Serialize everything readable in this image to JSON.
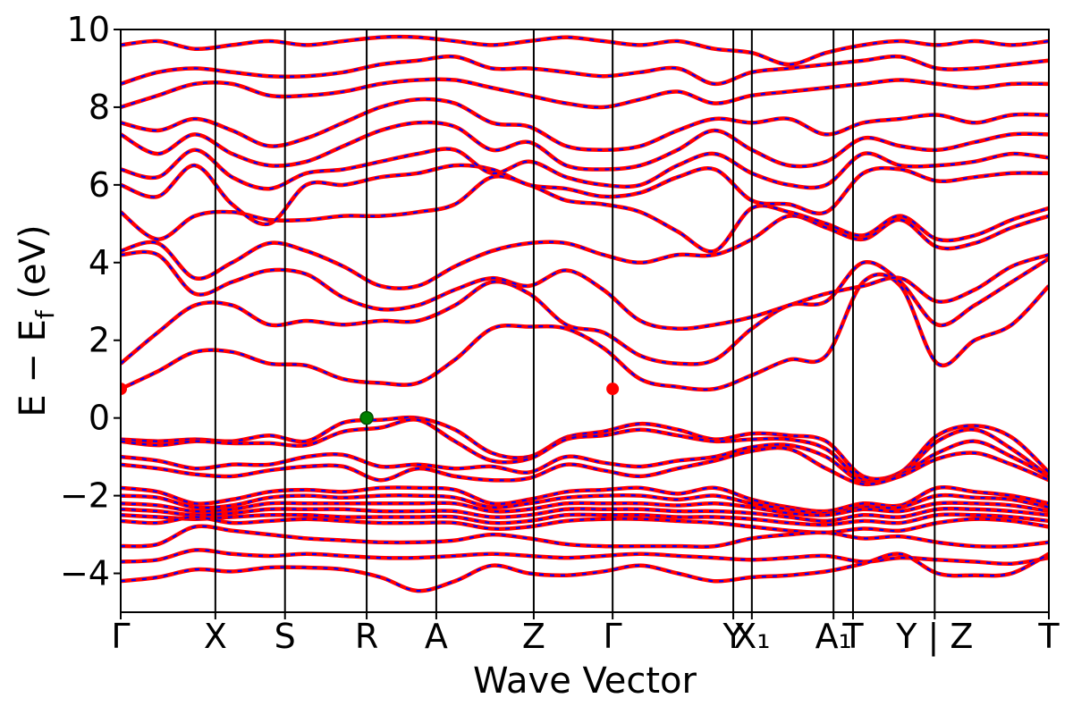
{
  "chart_data": {
    "type": "line",
    "title": "",
    "xlabel": "Wave Vector",
    "ylabel_main": "E − E",
    "ylabel_sub": "f",
    "ylabel_unit": " (eV)",
    "ylim": [
      -5,
      10
    ],
    "yticks": [
      -4,
      -2,
      0,
      2,
      4,
      6,
      8,
      10
    ],
    "ytick_labels": [
      "−4",
      "−2",
      "0",
      "2",
      "4",
      "6",
      "8",
      "10"
    ],
    "x_range": [
      0,
      1
    ],
    "kpoints": [
      {
        "label": "Γ",
        "x": 0.0
      },
      {
        "label": "X",
        "x": 0.102
      },
      {
        "label": "S",
        "x": 0.177
      },
      {
        "label": "R",
        "x": 0.265
      },
      {
        "label": "A",
        "x": 0.34
      },
      {
        "label": "Z",
        "x": 0.445
      },
      {
        "label": "Γ",
        "x": 0.53
      },
      {
        "label": "Y",
        "x": 0.66
      },
      {
        "label": "X₁",
        "x": 0.68
      },
      {
        "label": "A₁",
        "x": 0.768
      },
      {
        "label": "T",
        "x": 0.789
      },
      {
        "label": "Y | Z",
        "x": 0.877
      },
      {
        "label": "T",
        "x": 1.0
      }
    ],
    "series": [
      {
        "name": "",
        "color": "#ff0000",
        "style": "solid"
      },
      {
        "name": "",
        "color": "#0000ff",
        "style": "dashed"
      }
    ],
    "cbm_points": [
      {
        "x": 0.0,
        "y": 0.75,
        "color": "#ff0000"
      },
      {
        "x": 0.53,
        "y": 0.75,
        "color": "#ff0000"
      }
    ],
    "vbm_point": {
      "x": 0.265,
      "y": 0.0,
      "color": "#008000"
    },
    "valence_bands": [
      [
        -0.55,
        -0.6,
        -0.55,
        -0.6,
        -0.45,
        -0.6,
        -0.12,
        -0.05,
        0.0,
        -0.3,
        -0.9,
        -1.0,
        -0.5,
        -0.35,
        -0.15,
        -0.3,
        -0.55,
        -0.4,
        -0.45,
        -0.6,
        -1.5,
        -1.4,
        -0.45,
        -0.2,
        -0.5,
        -1.4
      ],
      [
        -0.6,
        -0.7,
        -0.6,
        -0.65,
        -0.65,
        -0.7,
        -0.35,
        -0.25,
        -0.05,
        -0.6,
        -1.1,
        -1.05,
        -0.55,
        -0.45,
        -0.3,
        -0.45,
        -0.6,
        -0.55,
        -0.55,
        -0.8,
        -1.6,
        -1.45,
        -0.6,
        -0.3,
        -0.8,
        -1.5
      ],
      [
        -1.0,
        -1.1,
        -1.3,
        -1.2,
        -1.2,
        -1.0,
        -0.95,
        -1.25,
        -1.2,
        -1.3,
        -1.25,
        -1.4,
        -1.0,
        -1.15,
        -1.25,
        -1.1,
        -1.0,
        -0.75,
        -0.7,
        -1.0,
        -1.65,
        -1.45,
        -0.9,
        -0.6,
        -1.0,
        -1.5
      ],
      [
        -1.2,
        -1.3,
        -1.45,
        -1.5,
        -1.35,
        -1.25,
        -1.25,
        -1.6,
        -1.3,
        -1.5,
        -1.6,
        -1.55,
        -1.2,
        -1.35,
        -1.5,
        -1.3,
        -1.1,
        -0.85,
        -0.8,
        -1.3,
        -1.7,
        -1.5,
        -1.05,
        -0.9,
        -1.2,
        -1.6
      ],
      [
        -1.8,
        -1.9,
        -2.2,
        -2.1,
        -1.9,
        -1.85,
        -1.9,
        -1.8,
        -1.8,
        -1.85,
        -2.2,
        -2.1,
        -1.9,
        -1.85,
        -1.8,
        -1.95,
        -1.8,
        -2.1,
        -2.3,
        -2.4,
        -2.2,
        -2.25,
        -1.8,
        -1.9,
        -2.0,
        -2.2
      ],
      [
        -2.0,
        -2.05,
        -2.3,
        -2.25,
        -2.05,
        -2.0,
        -2.05,
        -2.0,
        -2.0,
        -2.05,
        -2.3,
        -2.2,
        -2.05,
        -2.0,
        -2.0,
        -2.1,
        -2.0,
        -2.2,
        -2.35,
        -2.45,
        -2.3,
        -2.3,
        -2.0,
        -2.05,
        -2.1,
        -2.3
      ],
      [
        -2.2,
        -2.25,
        -2.4,
        -2.35,
        -2.2,
        -2.2,
        -2.2,
        -2.2,
        -2.2,
        -2.2,
        -2.4,
        -2.35,
        -2.2,
        -2.2,
        -2.2,
        -2.25,
        -2.2,
        -2.3,
        -2.45,
        -2.5,
        -2.35,
        -2.4,
        -2.2,
        -2.2,
        -2.25,
        -2.4
      ],
      [
        -2.35,
        -2.4,
        -2.5,
        -2.45,
        -2.35,
        -2.35,
        -2.35,
        -2.4,
        -2.4,
        -2.4,
        -2.55,
        -2.5,
        -2.35,
        -2.35,
        -2.35,
        -2.4,
        -2.4,
        -2.45,
        -2.55,
        -2.65,
        -2.5,
        -2.55,
        -2.35,
        -2.35,
        -2.4,
        -2.5
      ],
      [
        -2.5,
        -2.55,
        -2.6,
        -2.55,
        -2.5,
        -2.5,
        -2.55,
        -2.55,
        -2.55,
        -2.55,
        -2.7,
        -2.65,
        -2.5,
        -2.5,
        -2.5,
        -2.55,
        -2.55,
        -2.6,
        -2.7,
        -2.75,
        -2.65,
        -2.7,
        -2.5,
        -2.5,
        -2.55,
        -2.65
      ],
      [
        -2.65,
        -2.7,
        -2.55,
        -2.7,
        -2.65,
        -2.6,
        -2.65,
        -2.7,
        -2.7,
        -2.7,
        -2.85,
        -2.8,
        -2.65,
        -2.6,
        -2.6,
        -2.65,
        -2.7,
        -2.8,
        -2.9,
        -2.95,
        -2.85,
        -2.9,
        -2.7,
        -2.6,
        -2.65,
        -2.8
      ],
      [
        -3.3,
        -3.25,
        -2.8,
        -2.9,
        -3.0,
        -3.1,
        -3.15,
        -3.2,
        -3.2,
        -3.15,
        -3.0,
        -3.1,
        -3.25,
        -3.3,
        -3.3,
        -3.3,
        -3.3,
        -3.1,
        -3.0,
        -2.95,
        -3.1,
        -3.05,
        -3.2,
        -3.3,
        -3.3,
        -3.2
      ],
      [
        -3.7,
        -3.65,
        -3.4,
        -3.5,
        -3.55,
        -3.5,
        -3.55,
        -3.6,
        -3.6,
        -3.55,
        -3.5,
        -3.55,
        -3.6,
        -3.55,
        -3.5,
        -3.55,
        -3.6,
        -3.65,
        -3.6,
        -3.55,
        -3.7,
        -3.6,
        -3.65,
        -3.7,
        -3.75,
        -3.6
      ],
      [
        -4.2,
        -4.1,
        -3.9,
        -3.95,
        -3.85,
        -3.85,
        -3.9,
        -4.1,
        -4.45,
        -4.2,
        -3.8,
        -4.0,
        -4.05,
        -3.95,
        -3.8,
        -4.0,
        -4.2,
        -4.1,
        -4.05,
        -3.95,
        -3.75,
        -3.5,
        -4.0,
        -4.05,
        -4.0,
        -3.5
      ]
    ],
    "conduction_bands": [
      [
        0.75,
        1.2,
        1.7,
        1.7,
        1.4,
        1.35,
        1.0,
        0.9,
        0.9,
        1.5,
        2.3,
        2.35,
        2.3,
        1.8,
        1.0,
        0.8,
        0.75,
        1.1,
        1.5,
        1.6,
        3.5,
        3.4,
        1.4,
        2.0,
        2.4,
        3.4
      ],
      [
        1.4,
        2.2,
        2.9,
        2.9,
        2.4,
        2.5,
        2.4,
        2.5,
        2.5,
        2.9,
        3.5,
        3.2,
        2.4,
        2.2,
        1.6,
        1.4,
        1.5,
        2.3,
        2.9,
        3.0,
        4.0,
        3.5,
        2.4,
        2.9,
        3.5,
        4.1
      ],
      [
        4.2,
        4.2,
        3.2,
        3.5,
        3.8,
        3.7,
        3.1,
        2.8,
        2.9,
        3.3,
        3.6,
        3.4,
        3.8,
        3.3,
        2.5,
        2.3,
        2.4,
        2.6,
        2.9,
        3.2,
        3.4,
        3.6,
        3.0,
        3.3,
        3.9,
        4.2
      ],
      [
        4.3,
        4.5,
        3.6,
        4.0,
        4.5,
        4.3,
        3.9,
        3.4,
        3.4,
        3.9,
        4.3,
        4.5,
        4.5,
        4.2,
        4.0,
        4.2,
        4.2,
        4.6,
        5.2,
        4.9,
        4.6,
        5.1,
        4.4,
        4.5,
        4.9,
        5.2
      ],
      [
        5.3,
        4.6,
        5.2,
        5.3,
        5.1,
        5.1,
        5.2,
        5.2,
        5.3,
        5.5,
        6.2,
        6.0,
        5.6,
        5.5,
        5.3,
        4.8,
        4.3,
        5.4,
        5.3,
        5.0,
        4.7,
        5.2,
        4.6,
        4.7,
        5.1,
        5.4
      ],
      [
        6.0,
        5.7,
        6.5,
        5.5,
        5.0,
        6.0,
        6.0,
        6.2,
        6.3,
        6.5,
        6.4,
        6.0,
        5.9,
        5.7,
        5.8,
        6.2,
        6.4,
        5.6,
        5.5,
        5.3,
        6.3,
        6.4,
        6.1,
        6.2,
        6.3,
        6.3
      ],
      [
        6.4,
        6.2,
        6.9,
        6.2,
        5.9,
        6.3,
        6.4,
        6.6,
        6.8,
        6.9,
        6.3,
        6.6,
        6.2,
        6.0,
        6.0,
        6.5,
        6.8,
        6.3,
        6.0,
        6.0,
        6.8,
        6.5,
        6.5,
        6.6,
        6.8,
        6.7
      ],
      [
        7.3,
        6.8,
        7.3,
        6.8,
        6.5,
        6.6,
        7.0,
        7.4,
        7.6,
        7.5,
        6.9,
        7.1,
        6.5,
        6.4,
        6.5,
        6.9,
        7.4,
        6.9,
        6.5,
        6.6,
        7.2,
        7.0,
        6.9,
        7.1,
        7.3,
        7.3
      ],
      [
        7.6,
        7.4,
        7.7,
        7.4,
        7.0,
        7.2,
        7.6,
        8.0,
        8.2,
        8.1,
        7.6,
        7.5,
        7.0,
        6.9,
        7.0,
        7.4,
        7.7,
        7.6,
        7.7,
        7.3,
        7.6,
        7.7,
        7.8,
        7.6,
        7.8,
        7.8
      ],
      [
        8.0,
        8.3,
        8.6,
        8.6,
        8.3,
        8.3,
        8.4,
        8.6,
        8.7,
        8.7,
        8.5,
        8.3,
        8.1,
        8.0,
        8.2,
        8.4,
        8.1,
        8.3,
        8.4,
        8.5,
        8.6,
        8.7,
        8.6,
        8.5,
        8.6,
        8.6
      ],
      [
        8.6,
        8.9,
        9.0,
        8.9,
        8.8,
        8.8,
        8.9,
        9.1,
        9.2,
        9.3,
        9.0,
        9.0,
        8.9,
        8.8,
        8.9,
        9.0,
        8.6,
        8.9,
        9.0,
        9.1,
        9.2,
        9.3,
        9.0,
        9.0,
        9.1,
        9.2
      ],
      [
        9.6,
        9.7,
        9.5,
        9.6,
        9.7,
        9.6,
        9.7,
        9.8,
        9.8,
        9.7,
        9.6,
        9.7,
        9.8,
        9.7,
        9.6,
        9.7,
        9.5,
        9.4,
        9.1,
        9.4,
        9.6,
        9.7,
        9.6,
        9.7,
        9.6,
        9.7
      ]
    ]
  }
}
